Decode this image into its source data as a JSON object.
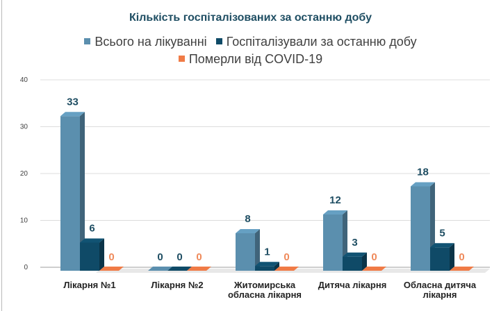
{
  "chart_data": {
    "type": "bar",
    "title": "Кількість госпіталізованих за останню добу",
    "categories": [
      [
        "Лікарня №1"
      ],
      [
        "Лікарня №2"
      ],
      [
        "Житомирська",
        "обласна лікарня"
      ],
      [
        "Дитяча лікарня"
      ],
      [
        "Обласна дитяча",
        "лікарня"
      ]
    ],
    "series": [
      {
        "name": "Всього на лікуванні",
        "color": "#5b8fae",
        "label_color": "#1f4e63",
        "values": [
          33,
          0,
          8,
          12,
          18
        ]
      },
      {
        "name": "Госпіталізували за останню добу",
        "color": "#0f4a67",
        "label_color": "#1f4e63",
        "values": [
          6,
          0,
          1,
          3,
          5
        ]
      },
      {
        "name": "Померли від COVID-19",
        "color": "#f07b46",
        "label_color": "#ef8a5b",
        "values": [
          0,
          0,
          0,
          0,
          0
        ]
      }
    ],
    "ylim": [
      0,
      40
    ],
    "yticks": [
      0,
      10,
      20,
      30,
      40
    ],
    "xlabel": "",
    "ylabel": "",
    "grid": true,
    "legend": "top",
    "style": "3d-column"
  }
}
